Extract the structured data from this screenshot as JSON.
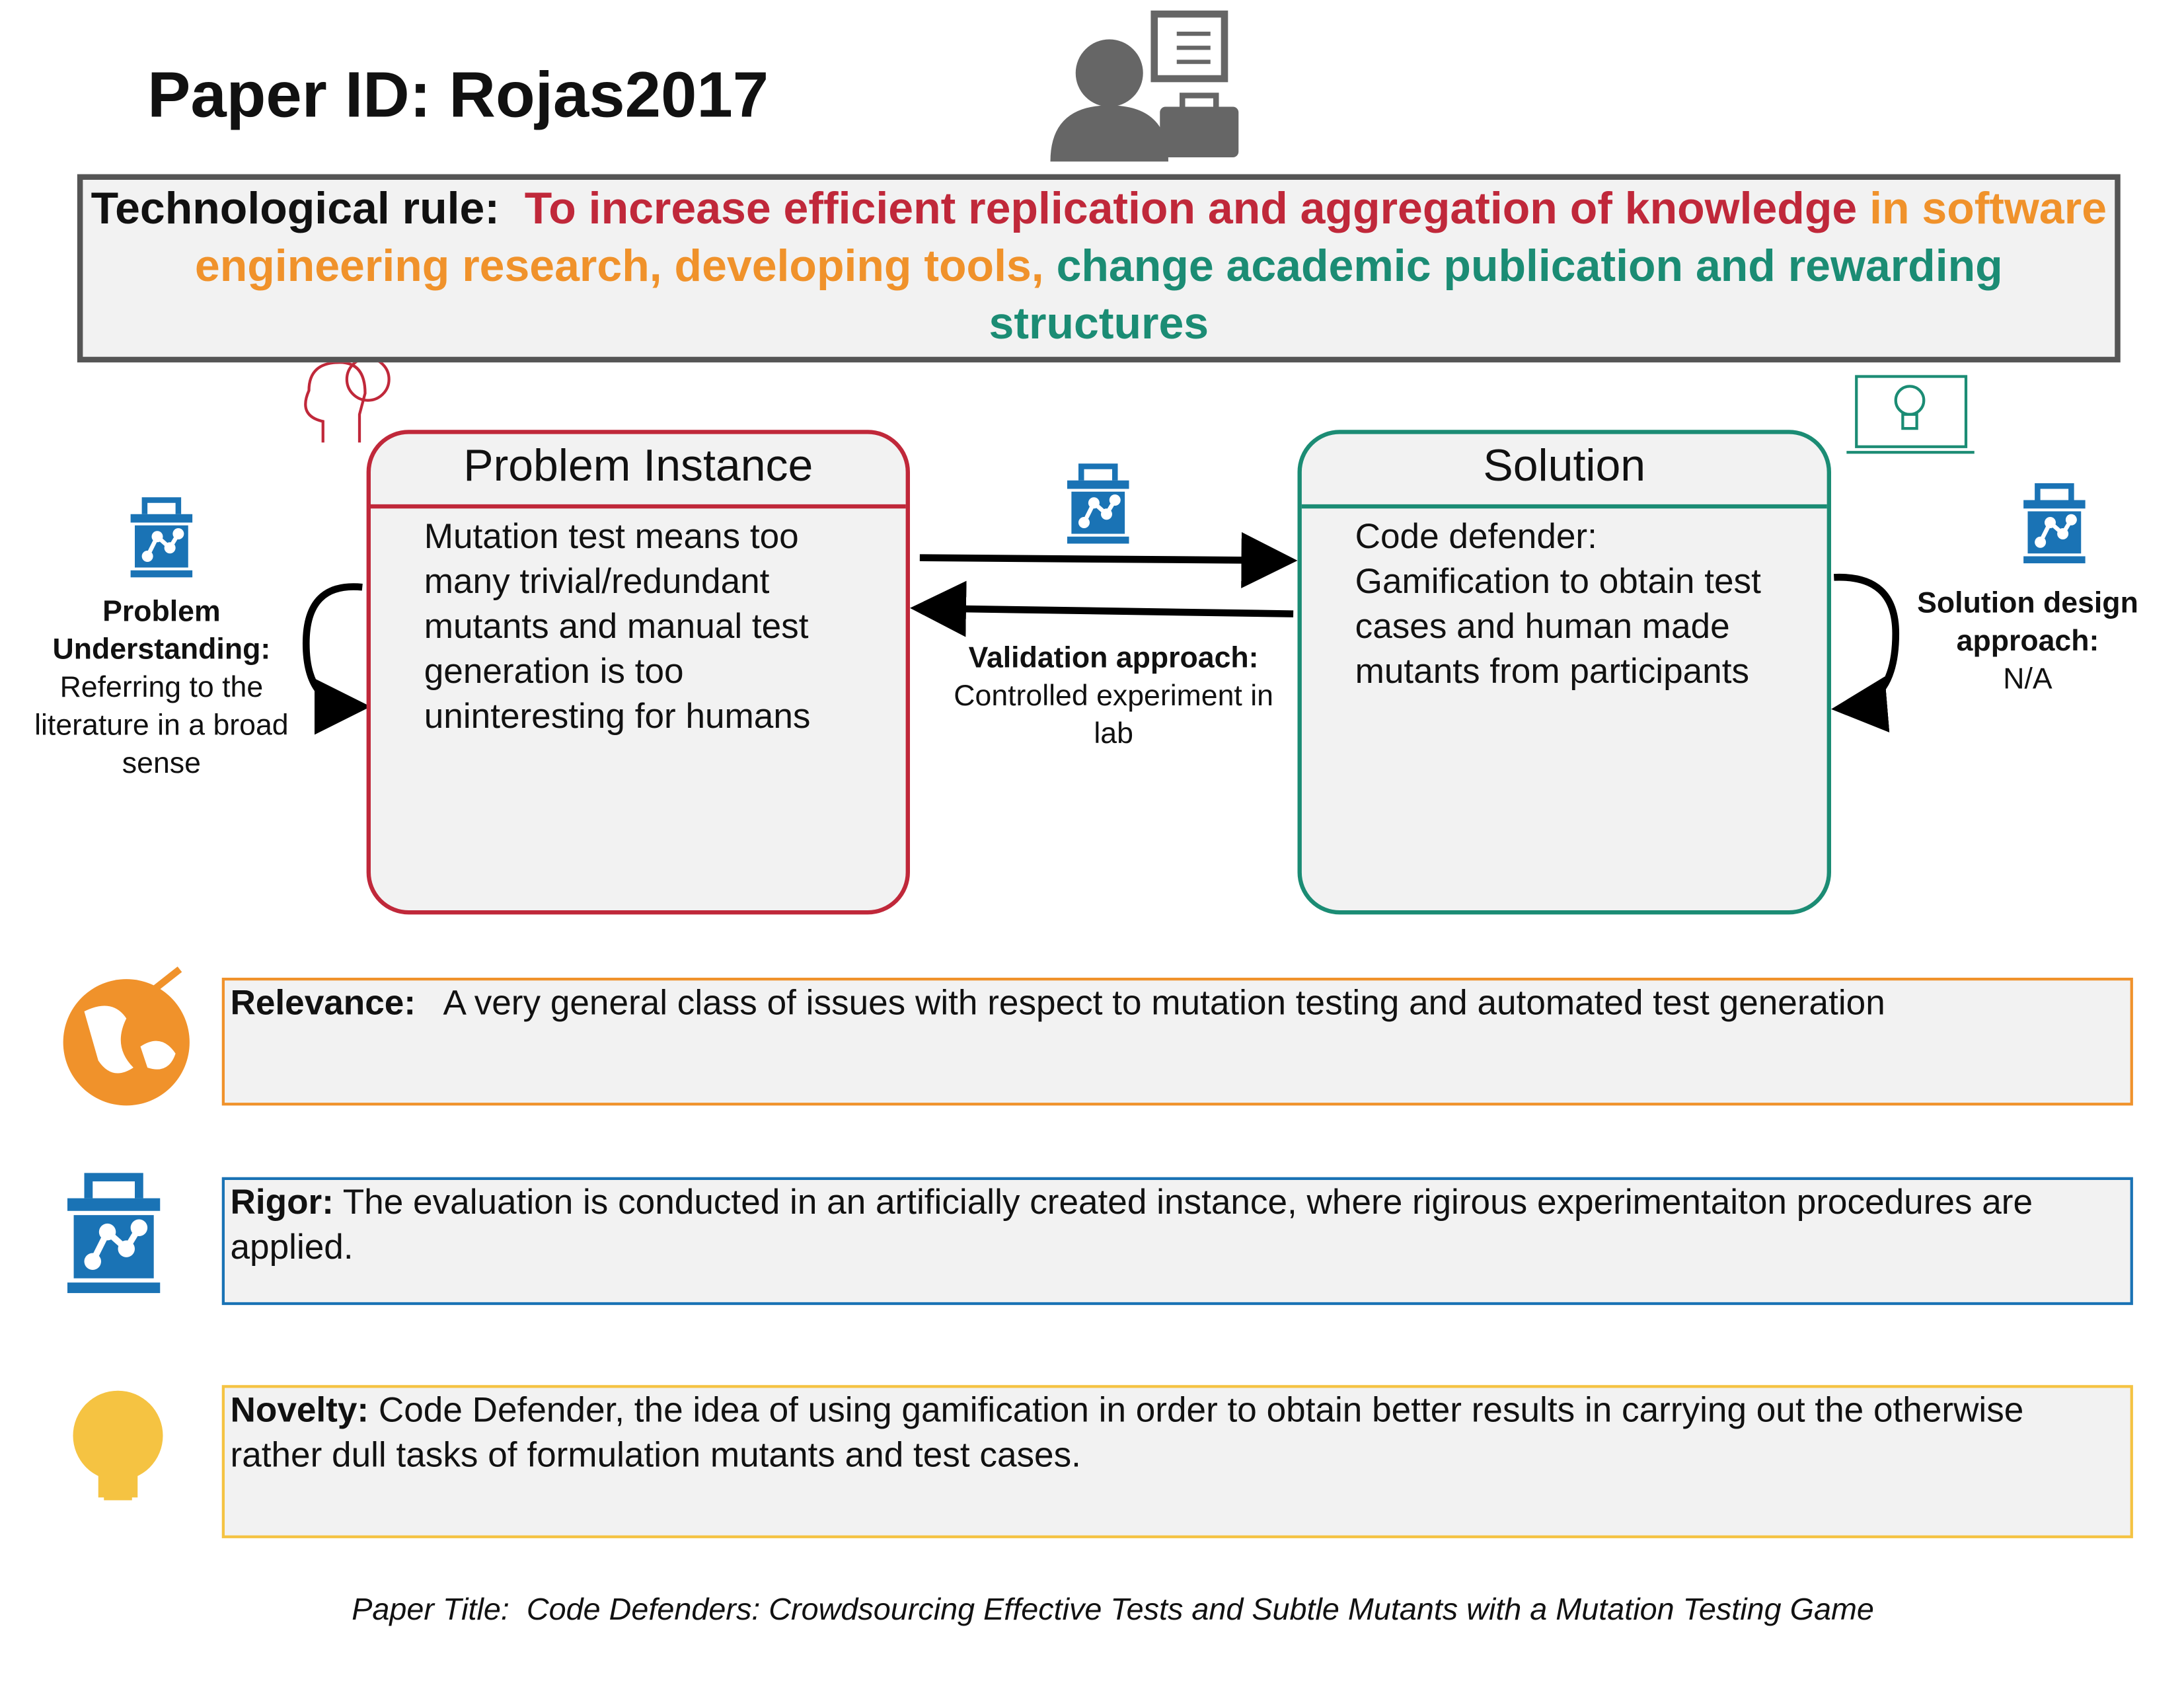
{
  "header": {
    "title": "Paper ID: Rojas2017"
  },
  "technological_rule": {
    "label": "Technological rule:",
    "parts": [
      "To increase efficient replication and aggregation of knowledge",
      "in software engineering research, developing tools,",
      "change academic publication and rewarding structures"
    ]
  },
  "problem_instance": {
    "title": "Problem Instance",
    "text": "Mutation test means too many trivial/redundant mutants and manual test generation is too uninteresting for humans"
  },
  "solution": {
    "title": "Solution",
    "text": "Code defender: Gamification to obtain test cases and human made mutants from participants"
  },
  "problem_understanding": {
    "label": "Problem Understanding:",
    "text": "Referring to the literature in a broad sense"
  },
  "validation": {
    "label": "Validation approach:",
    "text": "Controlled experiment in lab"
  },
  "solution_design": {
    "label": "Solution design approach:",
    "text": "N/A"
  },
  "relevance": {
    "label": "Relevance:",
    "text": "A very general class of issues with respect to mutation testing and automated test generation"
  },
  "rigor": {
    "label": "Rigor:",
    "text": "The evaluation is conducted in an artificially created instance, where rigirous experimentaiton procedures are applied."
  },
  "novelty": {
    "label": "Novelty:",
    "text": "Code Defender, the idea of using gamification in order to obtain better results in carrying out the otherwise rather dull tasks of formulation mutants and test cases."
  },
  "footer": {
    "label": "Paper Title:",
    "text": "Code Defenders: Crowdsourcing Effective Tests and Subtle Mutants with a Mutation Testing Game"
  }
}
